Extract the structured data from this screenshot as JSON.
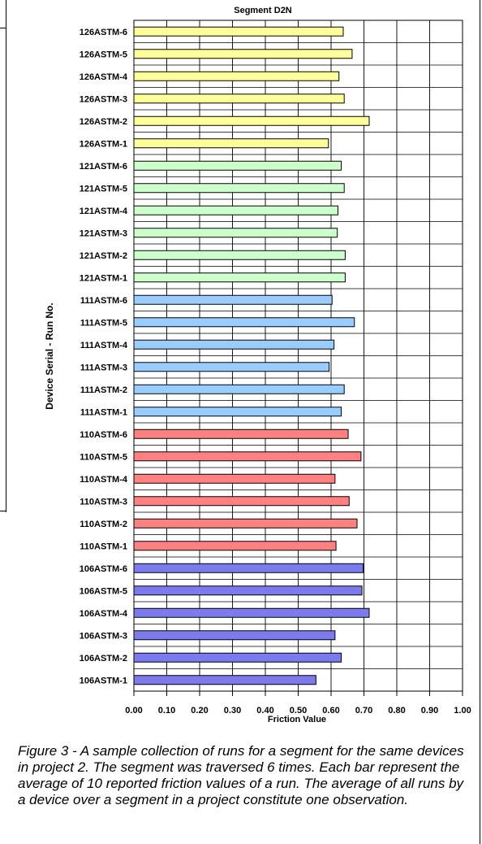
{
  "chart_data": {
    "type": "bar",
    "orientation": "horizontal",
    "title": "Segment D2N",
    "xlabel": "Friction Value",
    "ylabel": "Device Serial - Run No.",
    "xlim": [
      0,
      1
    ],
    "xticks": [
      "0.00",
      "0.10",
      "0.20",
      "0.30",
      "0.40",
      "0.50",
      "0.60",
      "0.70",
      "0.80",
      "0.90",
      "1.00"
    ],
    "grid": true,
    "legend": "none",
    "categories": [
      "126ASTM-6",
      "126ASTM-5",
      "126ASTM-4",
      "126ASTM-3",
      "126ASTM-2",
      "126ASTM-1",
      "121ASTM-6",
      "121ASTM-5",
      "121ASTM-4",
      "121ASTM-3",
      "121ASTM-2",
      "121ASTM-1",
      "111ASTM-6",
      "111ASTM-5",
      "111ASTM-4",
      "111ASTM-3",
      "111ASTM-2",
      "111ASTM-1",
      "110ASTM-6",
      "110ASTM-5",
      "110ASTM-4",
      "110ASTM-3",
      "110ASTM-2",
      "110ASTM-1",
      "106ASTM-6",
      "106ASTM-5",
      "106ASTM-4",
      "106ASTM-3",
      "106ASTM-2",
      "106ASTM-1"
    ],
    "values": [
      0.637,
      0.664,
      0.624,
      0.64,
      0.716,
      0.592,
      0.631,
      0.64,
      0.621,
      0.619,
      0.643,
      0.643,
      0.603,
      0.671,
      0.609,
      0.594,
      0.64,
      0.631,
      0.652,
      0.691,
      0.612,
      0.655,
      0.679,
      0.615,
      0.698,
      0.694,
      0.716,
      0.612,
      0.631,
      0.554
    ],
    "group_colors": [
      "#ffff99",
      "#ccffcc",
      "#99ccff",
      "#ff8080",
      "#7b7bee"
    ],
    "group_size": 6
  },
  "caption": "Figure 3 - A sample collection of runs for a segment for the same devices in project 2. The segment was traversed 6 times. Each bar represent the average of 10 reported friction values of a run. The average of all runs by a device over a segment in a project constitute one observation."
}
